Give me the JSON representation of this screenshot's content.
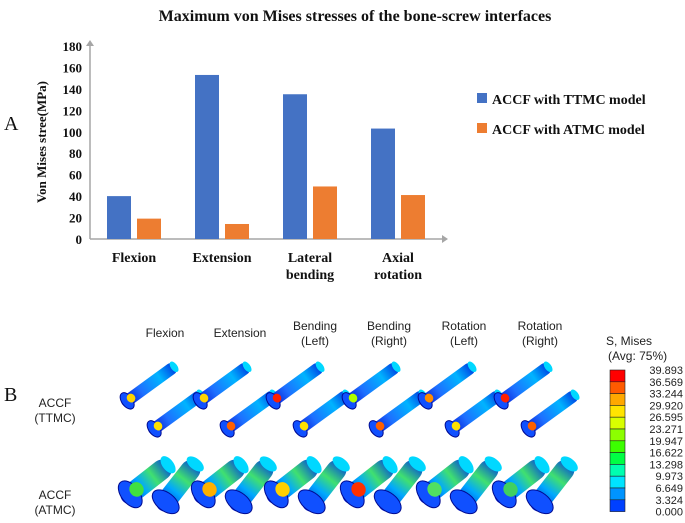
{
  "chart_data": {
    "type": "bar",
    "title": "Maximum von Mises stresses of the bone-screw interfaces",
    "ylabel": "Von Mises stree(MPa)",
    "xlabel": "",
    "panel_label": "A",
    "categories": [
      "Flexion",
      "Extension",
      "Lateral\nbending",
      "Axial\nrotation"
    ],
    "ylim": [
      0,
      180
    ],
    "yticks": [
      0,
      20,
      40,
      60,
      80,
      100,
      120,
      140,
      160,
      180
    ],
    "grid": false,
    "legend_position": "right",
    "series": [
      {
        "name": "ACCF with TTMC model",
        "color": "#4472C4",
        "values": [
          40,
          153,
          135,
          103
        ]
      },
      {
        "name": "ACCF with ATMC model",
        "color": "#ED7D31",
        "values": [
          19,
          14,
          49,
          41
        ]
      }
    ]
  },
  "panel_b": {
    "panel_label": "B",
    "columns": [
      "Flexion",
      "Extension",
      "Bending\n(Left)",
      "Bending\n(Right)",
      "Rotation\n(Left)",
      "Rotation\n(Right)"
    ],
    "rows": [
      "ACCF\n(TTMC)",
      "ACCF\n(ATMC)"
    ],
    "colorbar": {
      "title_line1": "S, Mises",
      "title_line2": "(Avg: 75%)",
      "values": [
        "39.893",
        "36.569",
        "33.244",
        "29.920",
        "26.595",
        "23.271",
        "19.947",
        "16.622",
        "13.298",
        "9.973",
        "6.649",
        "3.324",
        "0.000"
      ],
      "colors": [
        "#ff0000",
        "#ff5a00",
        "#ffa800",
        "#ffe400",
        "#d8ff00",
        "#8cff00",
        "#3cff00",
        "#00ff44",
        "#00ffb0",
        "#00e4ff",
        "#0094ff",
        "#0040ff",
        "#0000ff"
      ]
    }
  }
}
